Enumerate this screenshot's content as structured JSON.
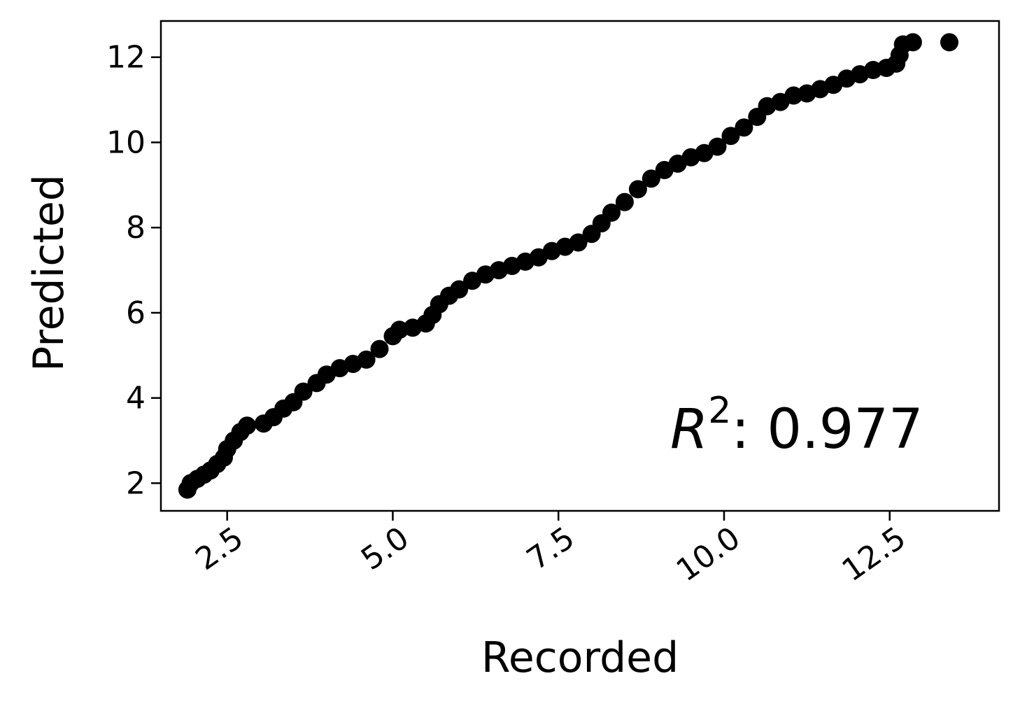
{
  "chart_data": {
    "type": "scatter",
    "xlabel": "Recorded",
    "ylabel": "Predicted",
    "xlim": [
      1.5,
      14.15
    ],
    "ylim": [
      1.35,
      12.85
    ],
    "x_ticks": [
      2.5,
      5.0,
      7.5,
      10.0,
      12.5
    ],
    "x_tick_labels": [
      "2.5",
      "5.0",
      "7.5",
      "10.0",
      "12.5"
    ],
    "y_ticks": [
      2,
      4,
      6,
      8,
      10,
      12
    ],
    "y_tick_labels": [
      "2",
      "4",
      "6",
      "8",
      "10",
      "12"
    ],
    "grid": false,
    "marker_color": "#000000",
    "annotation": {
      "symbol": "R",
      "superscript": "2",
      "rest": ": 0.977"
    },
    "points": [
      [
        1.9,
        1.85
      ],
      [
        1.95,
        2.0
      ],
      [
        2.05,
        2.1
      ],
      [
        2.15,
        2.2
      ],
      [
        2.25,
        2.3
      ],
      [
        2.35,
        2.45
      ],
      [
        2.45,
        2.6
      ],
      [
        2.5,
        2.8
      ],
      [
        2.6,
        3.0
      ],
      [
        2.7,
        3.2
      ],
      [
        2.8,
        3.35
      ],
      [
        3.05,
        3.4
      ],
      [
        3.2,
        3.55
      ],
      [
        3.35,
        3.75
      ],
      [
        3.5,
        3.9
      ],
      [
        3.65,
        4.15
      ],
      [
        3.85,
        4.35
      ],
      [
        4.0,
        4.55
      ],
      [
        4.2,
        4.7
      ],
      [
        4.4,
        4.8
      ],
      [
        4.6,
        4.9
      ],
      [
        4.8,
        5.15
      ],
      [
        5.0,
        5.45
      ],
      [
        5.1,
        5.6
      ],
      [
        5.3,
        5.65
      ],
      [
        5.5,
        5.75
      ],
      [
        5.6,
        5.95
      ],
      [
        5.7,
        6.2
      ],
      [
        5.85,
        6.4
      ],
      [
        6.0,
        6.55
      ],
      [
        6.2,
        6.75
      ],
      [
        6.4,
        6.9
      ],
      [
        6.6,
        7.0
      ],
      [
        6.8,
        7.1
      ],
      [
        7.0,
        7.2
      ],
      [
        7.2,
        7.3
      ],
      [
        7.4,
        7.45
      ],
      [
        7.6,
        7.55
      ],
      [
        7.8,
        7.65
      ],
      [
        8.0,
        7.85
      ],
      [
        8.15,
        8.1
      ],
      [
        8.3,
        8.35
      ],
      [
        8.5,
        8.6
      ],
      [
        8.7,
        8.9
      ],
      [
        8.9,
        9.15
      ],
      [
        9.1,
        9.35
      ],
      [
        9.3,
        9.5
      ],
      [
        9.5,
        9.65
      ],
      [
        9.7,
        9.75
      ],
      [
        9.9,
        9.9
      ],
      [
        10.1,
        10.15
      ],
      [
        10.3,
        10.35
      ],
      [
        10.5,
        10.6
      ],
      [
        10.65,
        10.85
      ],
      [
        10.85,
        10.95
      ],
      [
        11.05,
        11.1
      ],
      [
        11.25,
        11.15
      ],
      [
        11.45,
        11.25
      ],
      [
        11.65,
        11.35
      ],
      [
        11.85,
        11.5
      ],
      [
        12.05,
        11.6
      ],
      [
        12.25,
        11.7
      ],
      [
        12.45,
        11.75
      ],
      [
        12.6,
        11.85
      ],
      [
        12.65,
        12.05
      ],
      [
        12.7,
        12.3
      ],
      [
        12.85,
        12.35
      ],
      [
        13.4,
        12.35
      ]
    ]
  }
}
